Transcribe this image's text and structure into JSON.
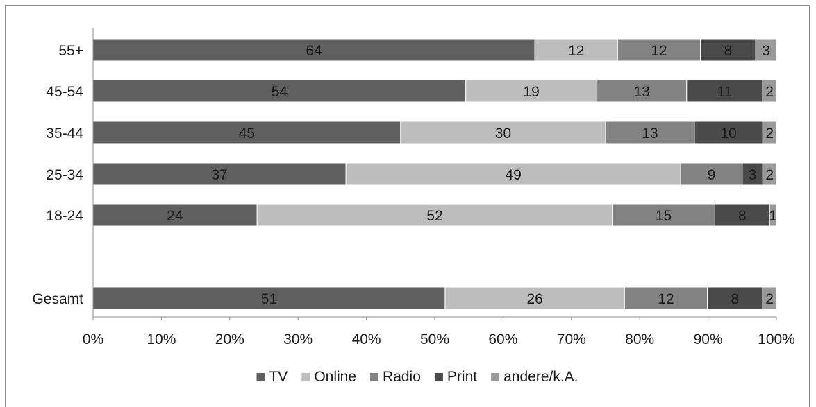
{
  "chart_data": {
    "type": "bar",
    "orientation": "horizontal",
    "stacked": "percent",
    "categories": [
      "55+",
      "45-54",
      "35-44",
      "25-34",
      "18-24",
      "",
      "Gesamt"
    ],
    "series": [
      {
        "name": "TV",
        "color": "#5f5f5f",
        "values": [
          64,
          54,
          45,
          37,
          24,
          null,
          51
        ]
      },
      {
        "name": "Online",
        "color": "#bdbdbd",
        "values": [
          12,
          19,
          30,
          49,
          52,
          null,
          26
        ]
      },
      {
        "name": "Radio",
        "color": "#828282",
        "values": [
          12,
          13,
          13,
          9,
          15,
          null,
          12
        ]
      },
      {
        "name": "Print",
        "color": "#4a4a4a",
        "values": [
          8,
          11,
          10,
          3,
          8,
          null,
          8
        ]
      },
      {
        "name": "andere/k.A.",
        "color": "#9a9a9a",
        "values": [
          3,
          2,
          2,
          2,
          1,
          null,
          2
        ]
      }
    ],
    "x_ticks": [
      "0%",
      "10%",
      "20%",
      "30%",
      "40%",
      "50%",
      "60%",
      "70%",
      "80%",
      "90%",
      "100%"
    ],
    "xlim": [
      0,
      100
    ],
    "title": "",
    "xlabel": "",
    "ylabel": "",
    "legend": "bottom",
    "grid": false
  }
}
